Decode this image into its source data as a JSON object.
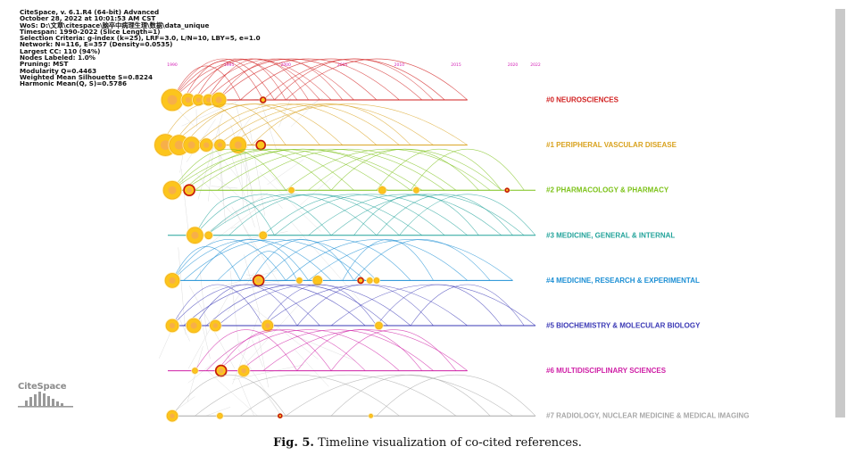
{
  "metadata_lines": [
    "CiteSpace, v. 6.1.R4 (64-bit) Advanced",
    "October 28, 2022 at 10:01:53 AM CST",
    "WoS: D:\\文章\\citespace\\脑卒中病理生理\\数据\\data_unique",
    "Timespan: 1990-2022 (Slice Length=1)",
    "Selection Criteria: g-index (k=25), LRF=3.0, L/N=10, LBY=5, e=1.0",
    "Network: N=116, E=357 (Density=0.0535)",
    "Largest CC: 110 (94%)",
    "Nodes Labeled: 1.0%",
    "Pruning: MST",
    "Modularity Q=0.4463",
    "Weighted Mean Silhouette S=0.8224",
    "Harmonic Mean(Q, S)=0.5786"
  ],
  "logo_text": "CiteSpace",
  "caption": {
    "label": "Fig. 5.",
    "text": "Timeline visualization of co-cited references."
  },
  "chart_data": {
    "type": "timeline",
    "year_range": [
      1990,
      2022
    ],
    "year_ticks": [
      "1990",
      "1995",
      "2000",
      "2005",
      "2010",
      "2015",
      "2020",
      "2022"
    ],
    "clusters": [
      {
        "id": "#0",
        "label": "#0 NEUROSCIENCES",
        "color": "#d11f1f",
        "line_end": 2016,
        "nodes": [
          [
            1990,
            12,
            false
          ],
          [
            1991.4,
            7,
            false
          ],
          [
            1992.3,
            6,
            false
          ],
          [
            1993.2,
            6,
            false
          ],
          [
            1994.1,
            8,
            false
          ],
          [
            1998,
            3,
            true
          ]
        ],
        "arcs": [
          [
            1990,
            1996
          ],
          [
            1990,
            1999
          ],
          [
            1990,
            2001
          ],
          [
            1990,
            2004
          ],
          [
            1991,
            1998
          ],
          [
            1991,
            2003
          ],
          [
            1992,
            2000
          ],
          [
            1992,
            2006
          ],
          [
            1993,
            2002
          ],
          [
            1993,
            2008
          ],
          [
            1994,
            2005
          ],
          [
            1994,
            2010
          ],
          [
            1996,
            2012
          ],
          [
            1998,
            2014
          ],
          [
            2000,
            2016
          ],
          [
            1999,
            2013
          ]
        ]
      },
      {
        "id": "#1",
        "label": "#1 PERIPHERAL VASCULAR DISEASE",
        "color": "#d9a21e",
        "line_end": 2016,
        "nodes": [
          [
            1989.4,
            12,
            false
          ],
          [
            1990.6,
            11,
            false
          ],
          [
            1991.7,
            9,
            false
          ],
          [
            1993,
            7,
            false
          ],
          [
            1994.2,
            6,
            false
          ],
          [
            1995.8,
            9,
            false
          ],
          [
            1997.8,
            5,
            true
          ]
        ],
        "arcs": [
          [
            1989,
            1997
          ],
          [
            1990,
            2000
          ],
          [
            1990,
            2005
          ],
          [
            1991,
            2003
          ],
          [
            1992,
            2008
          ],
          [
            1993,
            2010
          ],
          [
            1994,
            2013
          ],
          [
            1995,
            2016
          ],
          [
            1997,
            2011
          ]
        ]
      },
      {
        "id": "#2",
        "label": "#2 PHARMACOLOGY & PHARMACY",
        "color": "#7cc218",
        "line_end": 2022,
        "nodes": [
          [
            1990,
            10,
            false
          ],
          [
            1991.5,
            6,
            true
          ],
          [
            2000.5,
            3,
            false
          ],
          [
            2008.5,
            4,
            false
          ],
          [
            2011.5,
            3,
            false
          ],
          [
            2019.5,
            2,
            true
          ]
        ],
        "arcs": [
          [
            1990,
            2000
          ],
          [
            1990,
            2004
          ],
          [
            1990,
            2009
          ],
          [
            1991,
            2006
          ],
          [
            1991,
            2012
          ],
          [
            1992,
            2011
          ],
          [
            1994,
            2014
          ],
          [
            1996,
            2015
          ],
          [
            2000,
            2018
          ],
          [
            2002,
            2019
          ],
          [
            2008,
            2019
          ],
          [
            2011,
            2021
          ],
          [
            2004,
            2017
          ]
        ]
      },
      {
        "id": "#3",
        "label": "#3 MEDICINE, GENERAL & INTERNAL",
        "color": "#22a39a",
        "line_end": 2022,
        "nodes": [
          [
            1992,
            9,
            false
          ],
          [
            1993.2,
            4,
            false
          ],
          [
            1998,
            4,
            false
          ]
        ],
        "arcs": [
          [
            1992,
            1999
          ],
          [
            1992,
            2004
          ],
          [
            1993,
            2008
          ],
          [
            1993,
            2012
          ],
          [
            1995,
            2010
          ],
          [
            1998,
            2014
          ],
          [
            1999,
            2016
          ],
          [
            2002,
            2019
          ],
          [
            2004,
            2021
          ],
          [
            2008,
            2020
          ],
          [
            2006,
            2017
          ],
          [
            2010,
            2022
          ]
        ]
      },
      {
        "id": "#4",
        "label": "#4 MEDICINE, RESEARCH & EXPERIMENTAL",
        "color": "#1c8fd4",
        "line_end": 2020,
        "nodes": [
          [
            1990,
            8,
            false
          ],
          [
            1997.6,
            6,
            true
          ],
          [
            2001.2,
            3,
            false
          ],
          [
            2002.8,
            5,
            false
          ],
          [
            2006.6,
            3,
            true
          ],
          [
            2007.4,
            3,
            false
          ],
          [
            2008,
            3,
            false
          ]
        ],
        "arcs": [
          [
            1990,
            1996
          ],
          [
            1990,
            2000
          ],
          [
            1990,
            2004
          ],
          [
            1991,
            2007
          ],
          [
            1992,
            2002
          ],
          [
            1994,
            2008
          ],
          [
            1997,
            2006
          ],
          [
            1998,
            2011
          ],
          [
            2000,
            2016
          ],
          [
            2002,
            2020
          ],
          [
            2005,
            2013
          ],
          [
            2006,
            2018
          ],
          [
            1996,
            2001
          ]
        ]
      },
      {
        "id": "#5",
        "label": "#5 BIOCHEMISTRY & MOLECULAR BIOLOGY",
        "color": "#3a38b5",
        "line_end": 2022,
        "nodes": [
          [
            1990,
            7,
            false
          ],
          [
            1991.9,
            8,
            false
          ],
          [
            1993.8,
            6,
            false
          ],
          [
            1998.4,
            6,
            false
          ],
          [
            2008.2,
            4,
            false
          ]
        ],
        "arcs": [
          [
            1990,
            1998
          ],
          [
            1990,
            2003
          ],
          [
            1991,
            2007
          ],
          [
            1992,
            2001
          ],
          [
            1993,
            2009
          ],
          [
            1994,
            2011
          ],
          [
            1998,
            2008
          ],
          [
            1998,
            2016
          ],
          [
            2001,
            2013
          ],
          [
            2004,
            2022
          ],
          [
            2008,
            2019
          ],
          [
            2011,
            2021
          ]
        ]
      },
      {
        "id": "#6",
        "label": "#6 MULTIDISCIPLINARY SCIENCES",
        "color": "#cf1fa6",
        "line_end": 2016,
        "nodes": [
          [
            1992,
            3,
            false
          ],
          [
            1994.3,
            6,
            true
          ],
          [
            1996.3,
            6,
            false
          ]
        ],
        "arcs": [
          [
            1992,
            2001
          ],
          [
            1993,
            2007
          ],
          [
            1994,
            2004
          ],
          [
            1994,
            2010
          ],
          [
            1996,
            2013
          ],
          [
            1998,
            2016
          ],
          [
            2001,
            2012
          ],
          [
            2004,
            2015
          ]
        ]
      },
      {
        "id": "#7",
        "label": "#7 RADIOLOGY, NUCLEAR MEDICINE & MEDICAL IMAGING",
        "color": "#a8a8a8",
        "line_end": 2022,
        "nodes": [
          [
            1990,
            6,
            false
          ],
          [
            1994.2,
            3,
            false
          ],
          [
            1999.5,
            2,
            true
          ],
          [
            2007.5,
            2,
            false
          ]
        ],
        "arcs": [
          [
            1990,
            2000
          ],
          [
            1992,
            2010
          ],
          [
            1996,
            2015
          ],
          [
            2000,
            2020
          ],
          [
            2004,
            2018
          ],
          [
            2008,
            2022
          ]
        ]
      }
    ]
  }
}
